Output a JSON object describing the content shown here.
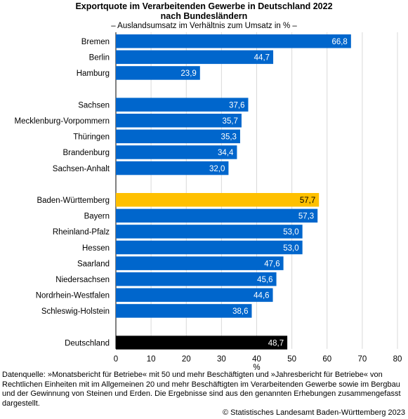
{
  "chart_data": {
    "type": "bar",
    "orientation": "horizontal",
    "title": "Exportquote im Verarbeitenden Gewerbe in Deutschland 2022",
    "title_line2": "nach Bundesländern",
    "subtitle": "– Auslandsumsatz im Verhältnis zum Umsatz in % –",
    "xlabel": "%",
    "xlim": [
      0,
      80
    ],
    "xticks": [
      "0",
      "10",
      "20",
      "30",
      "40",
      "50",
      "60",
      "70",
      "80"
    ],
    "grid": true,
    "groups": [
      {
        "items": [
          {
            "label": "Bremen",
            "value": 66.8,
            "value_label": "66,8",
            "color": "#0066cc"
          },
          {
            "label": "Berlin",
            "value": 44.7,
            "value_label": "44,7",
            "color": "#0066cc"
          },
          {
            "label": "Hamburg",
            "value": 23.9,
            "value_label": "23,9",
            "color": "#0066cc"
          }
        ]
      },
      {
        "items": [
          {
            "label": "Sachsen",
            "value": 37.6,
            "value_label": "37,6",
            "color": "#0066cc"
          },
          {
            "label": "Mecklenburg-Vorpommern",
            "value": 35.7,
            "value_label": "35,7",
            "color": "#0066cc"
          },
          {
            "label": "Thüringen",
            "value": 35.3,
            "value_label": "35,3",
            "color": "#0066cc"
          },
          {
            "label": "Brandenburg",
            "value": 34.4,
            "value_label": "34,4",
            "color": "#0066cc"
          },
          {
            "label": "Sachsen-Anhalt",
            "value": 32.0,
            "value_label": "32,0",
            "color": "#0066cc"
          }
        ]
      },
      {
        "items": [
          {
            "label": "Baden-Württemberg",
            "value": 57.7,
            "value_label": "57,7",
            "color": "#ffc000"
          },
          {
            "label": "Bayern",
            "value": 57.3,
            "value_label": "57,3",
            "color": "#0066cc"
          },
          {
            "label": "Rheinland-Pfalz",
            "value": 53.0,
            "value_label": "53,0",
            "color": "#0066cc"
          },
          {
            "label": "Hessen",
            "value": 53.0,
            "value_label": "53,0",
            "color": "#0066cc"
          },
          {
            "label": "Saarland",
            "value": 47.6,
            "value_label": "47,6",
            "color": "#0066cc"
          },
          {
            "label": "Niedersachsen",
            "value": 45.6,
            "value_label": "45,6",
            "color": "#0066cc"
          },
          {
            "label": "Nordrhein-Westfalen",
            "value": 44.6,
            "value_label": "44,6",
            "color": "#0066cc"
          },
          {
            "label": "Schleswig-Holstein",
            "value": 38.6,
            "value_label": "38,6",
            "color": "#0066cc"
          }
        ]
      },
      {
        "items": [
          {
            "label": "Deutschland",
            "value": 48.7,
            "value_label": "48,7",
            "color": "#000000"
          }
        ]
      }
    ]
  },
  "footer": {
    "source": "Datenquelle: »Monatsbericht für Betriebe« mit 50 und mehr Beschäftigten und »Jahresbericht für Betriebe« von Rechtlichen Einheiten mit im Allgemeinen 20 und mehr Beschäftigten im Verarbeitenden Gewerbe sowie im Bergbau und der Gewinnung von Steinen und Erden. Die Ergebnisse sind aus den genannten Erhebungen zusammengefasst dargestellt.",
    "copyright": "© Statistisches Landesamt Baden-Württemberg 2023"
  }
}
